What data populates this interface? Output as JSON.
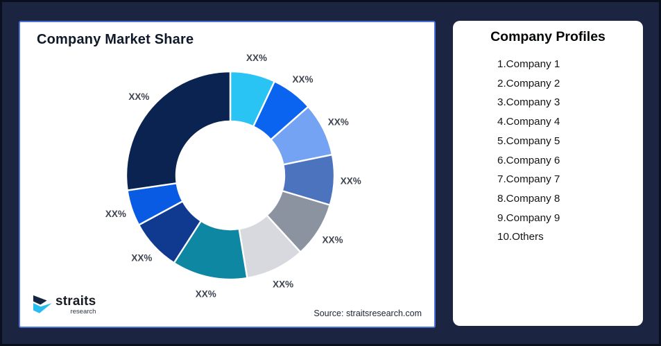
{
  "page": {
    "background_color": "#1B2541",
    "frame_border_color": "#0A0F1E"
  },
  "left_panel": {
    "title": "Company Market Share",
    "source": "Source: straitsresearch.com",
    "border_color": "#4A72D8",
    "logo": {
      "brand": "straits",
      "subtitle": "research",
      "icon_navy": "#16253F",
      "icon_cyan": "#29BDEF"
    }
  },
  "right_panel": {
    "title": "Company Profiles",
    "items": [
      "1.Company 1",
      "2.Company 2",
      "3.Company 3",
      "4.Company 4",
      "5.Company 5",
      "6.Company 6",
      "7.Company 7",
      "8.Company 8",
      "9.Company 9",
      "10.Others"
    ]
  },
  "chart_data": {
    "type": "pie",
    "donut": true,
    "title": "Company Market Share",
    "start_angle_deg": 0,
    "direction": "clockwise",
    "categories": [
      "Company 1",
      "Company 2",
      "Company 3",
      "Company 4",
      "Company 5",
      "Company 6",
      "Company 7",
      "Company 8",
      "Company 9",
      "Others"
    ],
    "values": [
      7.0,
      6.5,
      8.3,
      7.8,
      8.6,
      9.2,
      11.7,
      8.0,
      5.6,
      27.3
    ],
    "labels": [
      "XX%",
      "XX%",
      "XX%",
      "XX%",
      "XX%",
      "XX%",
      "XX%",
      "XX%",
      "XX%",
      "XX%"
    ],
    "colors": [
      "#29C3F4",
      "#0B64EF",
      "#74A3F3",
      "#4C73BE",
      "#8C93A0",
      "#D7D9DE",
      "#0E87A3",
      "#0F3A8F",
      "#0A5BE3",
      "#0A2351"
    ],
    "slice_gap_color": "#FFFFFF",
    "label_color": "#3E4450",
    "legend_position": "none"
  }
}
